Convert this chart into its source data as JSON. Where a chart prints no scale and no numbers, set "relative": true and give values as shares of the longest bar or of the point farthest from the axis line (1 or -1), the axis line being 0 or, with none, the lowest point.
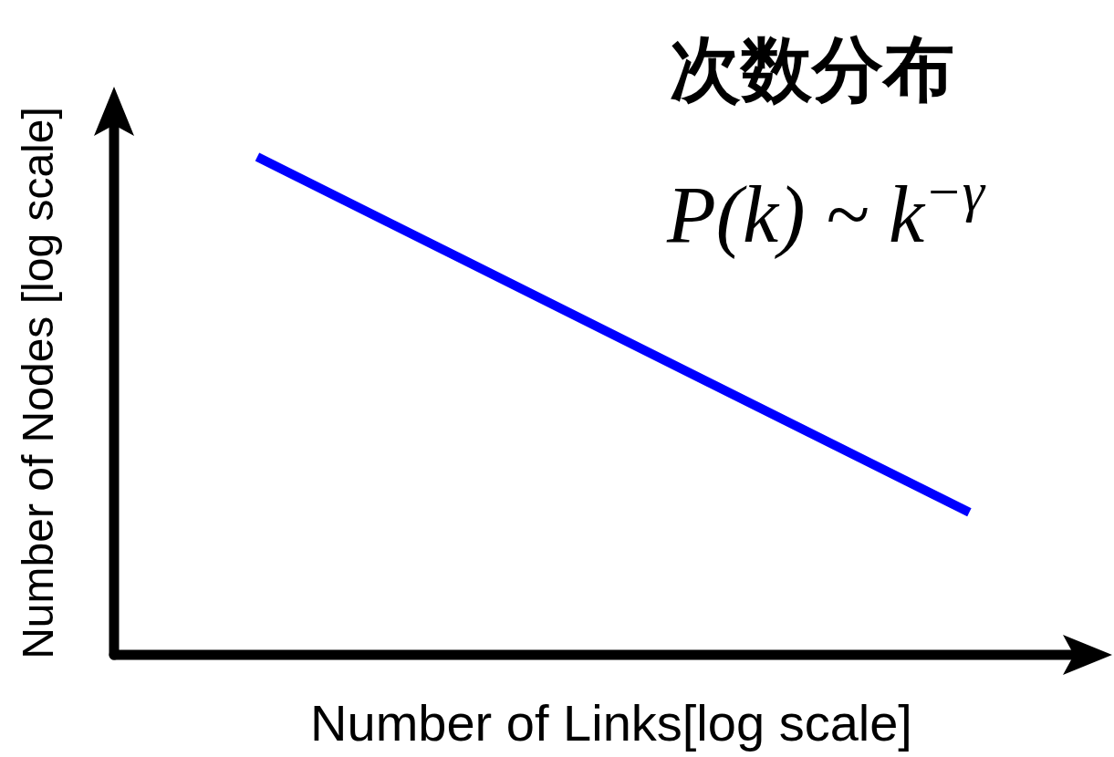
{
  "chart_data": {
    "type": "line",
    "title": "次数分布",
    "xlabel": "Number of Links[log scale]",
    "ylabel": "Number of Nodes [log scale]",
    "annotations": [
      "P(k) ~ k$^{−γ}$"
    ],
    "categories": [
      null,
      null
    ],
    "values": [
      1,
      0.286
    ],
    "color": "#0000ff",
    "relative": true
  }
}
